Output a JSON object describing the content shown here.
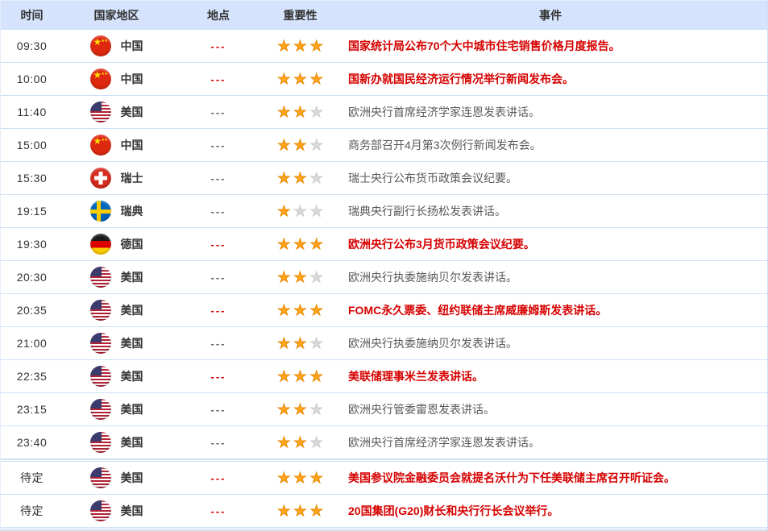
{
  "table": {
    "columns": [
      {
        "key": "time",
        "label": "时间"
      },
      {
        "key": "country",
        "label": "国家地区"
      },
      {
        "key": "location",
        "label": "地点"
      },
      {
        "key": "importance",
        "label": "重要性"
      },
      {
        "key": "event",
        "label": "事件"
      }
    ],
    "rows": [
      {
        "time": "09:30",
        "country": "中国",
        "flag": "china",
        "location": "---",
        "importance": 3,
        "max_importance": 3,
        "highlight": true,
        "section_break": false,
        "event": "国家统计局公布70个大中城市住宅销售价格月度报告。"
      },
      {
        "time": "10:00",
        "country": "中国",
        "flag": "china",
        "location": "---",
        "importance": 3,
        "max_importance": 3,
        "highlight": true,
        "section_break": false,
        "event": "国新办就国民经济运行情况举行新闻发布会。"
      },
      {
        "time": "11:40",
        "country": "美国",
        "flag": "usa",
        "location": "---",
        "importance": 2,
        "max_importance": 3,
        "highlight": false,
        "section_break": false,
        "event": "欧洲央行首席经济学家连恩发表讲话。"
      },
      {
        "time": "15:00",
        "country": "中国",
        "flag": "china",
        "location": "---",
        "importance": 2,
        "max_importance": 3,
        "highlight": false,
        "section_break": false,
        "event": "商务部召开4月第3次例行新闻发布会。"
      },
      {
        "time": "15:30",
        "country": "瑞士",
        "flag": "switzerland",
        "location": "---",
        "importance": 2,
        "max_importance": 3,
        "highlight": false,
        "section_break": false,
        "event": "瑞士央行公布货币政策会议纪要。"
      },
      {
        "time": "19:15",
        "country": "瑞典",
        "flag": "sweden",
        "location": "---",
        "importance": 1,
        "max_importance": 3,
        "highlight": false,
        "section_break": false,
        "event": "瑞典央行副行长扬松发表讲话。"
      },
      {
        "time": "19:30",
        "country": "德国",
        "flag": "germany",
        "location": "---",
        "importance": 3,
        "max_importance": 3,
        "highlight": true,
        "section_break": false,
        "event": "欧洲央行公布3月货币政策会议纪要。"
      },
      {
        "time": "20:30",
        "country": "美国",
        "flag": "usa",
        "location": "---",
        "importance": 2,
        "max_importance": 3,
        "highlight": false,
        "section_break": false,
        "event": "欧洲央行执委施纳贝尔发表讲话。"
      },
      {
        "time": "20:35",
        "country": "美国",
        "flag": "usa",
        "location": "---",
        "importance": 3,
        "max_importance": 3,
        "highlight": true,
        "section_break": false,
        "event": "FOMC永久票委、纽约联储主席威廉姆斯发表讲话。"
      },
      {
        "time": "21:00",
        "country": "美国",
        "flag": "usa",
        "location": "---",
        "importance": 2,
        "max_importance": 3,
        "highlight": false,
        "section_break": false,
        "event": "欧洲央行执委施纳贝尔发表讲话。"
      },
      {
        "time": "22:35",
        "country": "美国",
        "flag": "usa",
        "location": "---",
        "importance": 3,
        "max_importance": 3,
        "highlight": true,
        "section_break": false,
        "event": "美联储理事米兰发表讲话。"
      },
      {
        "time": "23:15",
        "country": "美国",
        "flag": "usa",
        "location": "---",
        "importance": 2,
        "max_importance": 3,
        "highlight": false,
        "section_break": false,
        "event": "欧洲央行管委雷恩发表讲话。"
      },
      {
        "time": "23:40",
        "country": "美国",
        "flag": "usa",
        "location": "---",
        "importance": 2,
        "max_importance": 3,
        "highlight": false,
        "section_break": false,
        "event": "欧洲央行首席经济学家连恩发表讲话。"
      },
      {
        "time": "待定",
        "country": "美国",
        "flag": "usa",
        "location": "---",
        "importance": 3,
        "max_importance": 3,
        "highlight": true,
        "section_break": true,
        "event": "美国参议院金融委员会就提名沃什为下任美联储主席召开听证会。"
      },
      {
        "time": "待定",
        "country": "美国",
        "flag": "usa",
        "location": "---",
        "importance": 3,
        "max_importance": 3,
        "highlight": true,
        "section_break": false,
        "event": "20国集团(G20)财长和央行行长会议举行。"
      }
    ]
  },
  "colors": {
    "header_bg": "#d5e3fc",
    "border": "#cfe0f7",
    "header_text": "#333333",
    "highlight_text": "#d60000",
    "normal_text": "#595959",
    "star_active": "#ffa41c",
    "star_inactive": "#d9d9d9",
    "footer_bg": "#d9e6fb"
  }
}
